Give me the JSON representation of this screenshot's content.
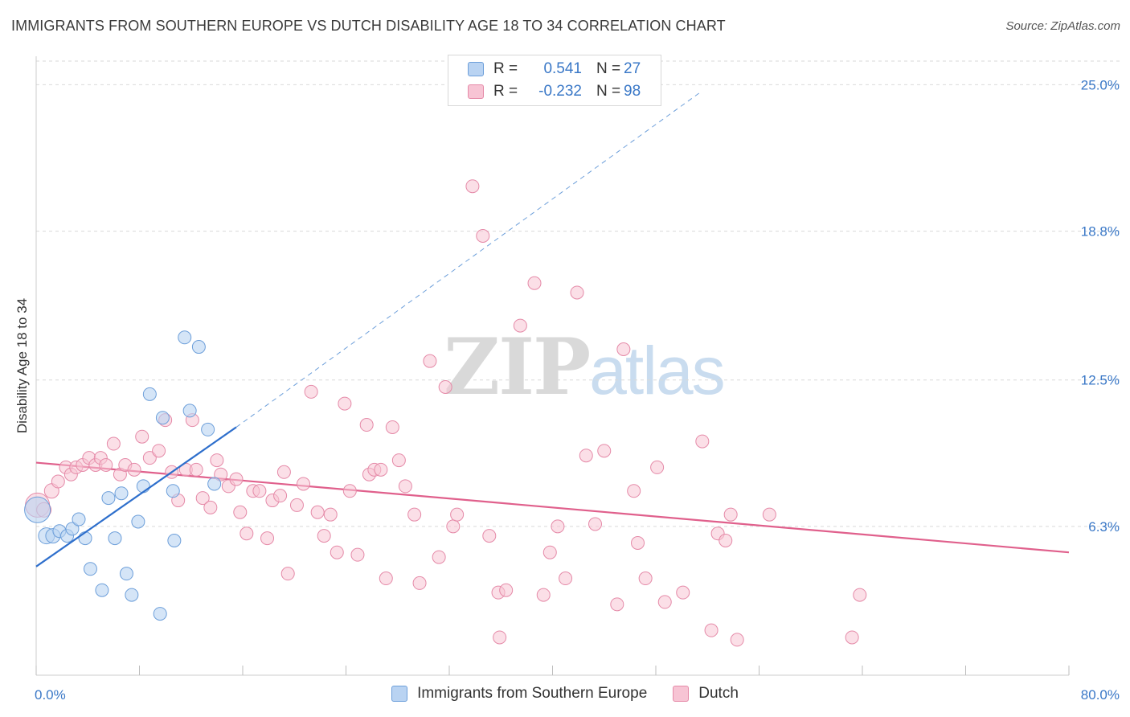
{
  "title": "IMMIGRANTS FROM SOUTHERN EUROPE VS DUTCH DISABILITY AGE 18 TO 34 CORRELATION CHART",
  "source": "Source: ZipAtlas.com",
  "watermark": {
    "zip": "ZIP",
    "atlas": "atlas"
  },
  "legend": {
    "rows": [
      {
        "r_label": "R =",
        "r_value": "0.541",
        "n_label": "N =",
        "n_value": "27"
      },
      {
        "r_label": "R =",
        "r_value": "-0.232",
        "n_label": "N =",
        "n_value": "98"
      }
    ]
  },
  "bottom_legend": {
    "items": [
      {
        "label": "Immigrants from Southern Europe"
      },
      {
        "label": "Dutch"
      }
    ]
  },
  "colors": {
    "blue_fill": "#b9d3f2",
    "blue_stroke": "#6d9fda",
    "blue_line": "#2e6fcc",
    "pink_fill": "#f7c4d4",
    "pink_stroke": "#e58aa8",
    "pink_line": "#e0608c",
    "axis_text": "#3a78c7",
    "grid": "#d9d9d9"
  },
  "chart_data": {
    "type": "scatter",
    "title": "IMMIGRANTS FROM SOUTHERN EUROPE VS DUTCH DISABILITY AGE 18 TO 34 CORRELATION CHART",
    "xlabel": "",
    "ylabel": "Disability Age 18 to 34",
    "xlim": [
      0,
      80
    ],
    "ylim": [
      0,
      26
    ],
    "x_tick_labels": [
      "0.0%",
      "80.0%"
    ],
    "y_ticks": [
      6.3,
      12.5,
      18.8,
      25.0
    ],
    "y_tick_labels": [
      "6.3%",
      "12.5%",
      "18.8%",
      "25.0%"
    ],
    "series": [
      {
        "name": "Immigrants from Southern Europe",
        "R": 0.541,
        "N": 27,
        "trend": {
          "x": [
            0,
            15.5
          ],
          "y": [
            4.6,
            10.5
          ],
          "extend_dashed_to": [
            51.5,
            24.7
          ]
        },
        "points": [
          [
            0.1,
            7.0,
            16
          ],
          [
            0.8,
            5.9,
            10
          ],
          [
            1.3,
            5.9,
            9
          ],
          [
            1.8,
            6.1,
            8
          ],
          [
            2.4,
            5.9,
            8
          ],
          [
            2.8,
            6.2,
            8
          ],
          [
            3.3,
            6.6,
            8
          ],
          [
            3.8,
            5.8,
            8
          ],
          [
            4.2,
            4.5,
            8
          ],
          [
            5.1,
            3.6,
            8
          ],
          [
            5.6,
            7.5,
            8
          ],
          [
            6.1,
            5.8,
            8
          ],
          [
            6.6,
            7.7,
            8
          ],
          [
            7.0,
            4.3,
            8
          ],
          [
            7.4,
            3.4,
            8
          ],
          [
            7.9,
            6.5,
            8
          ],
          [
            8.3,
            8.0,
            8
          ],
          [
            8.8,
            11.9,
            8
          ],
          [
            9.6,
            2.6,
            8
          ],
          [
            9.8,
            10.9,
            8
          ],
          [
            10.6,
            7.8,
            8
          ],
          [
            10.7,
            5.7,
            8
          ],
          [
            11.5,
            14.3,
            8
          ],
          [
            11.9,
            11.2,
            8
          ],
          [
            12.6,
            13.9,
            8
          ],
          [
            13.3,
            10.4,
            8
          ],
          [
            13.8,
            8.1,
            8
          ]
        ]
      },
      {
        "name": "Dutch",
        "R": -0.232,
        "N": 98,
        "trend": {
          "x": [
            0,
            80
          ],
          "y": [
            9.0,
            5.2
          ]
        },
        "points": [
          [
            0.1,
            7.2,
            15
          ],
          [
            0.6,
            7.0,
            9
          ],
          [
            1.2,
            7.8,
            9
          ],
          [
            1.7,
            8.2,
            8
          ],
          [
            2.3,
            8.8,
            8
          ],
          [
            2.7,
            8.5,
            8
          ],
          [
            3.1,
            8.8,
            8
          ],
          [
            3.6,
            8.9,
            8
          ],
          [
            4.1,
            9.2,
            8
          ],
          [
            4.6,
            8.9,
            8
          ],
          [
            5.0,
            9.2,
            8
          ],
          [
            5.4,
            8.9,
            8
          ],
          [
            6.0,
            9.8,
            8
          ],
          [
            6.5,
            8.5,
            8
          ],
          [
            6.9,
            8.9,
            8
          ],
          [
            7.6,
            8.7,
            8
          ],
          [
            8.2,
            10.1,
            8
          ],
          [
            8.8,
            9.2,
            8
          ],
          [
            9.5,
            9.5,
            8
          ],
          [
            10.0,
            10.8,
            8
          ],
          [
            10.5,
            8.6,
            8
          ],
          [
            11.0,
            7.4,
            8
          ],
          [
            11.6,
            8.7,
            8
          ],
          [
            12.1,
            10.8,
            8
          ],
          [
            12.4,
            8.7,
            8
          ],
          [
            12.9,
            7.5,
            8
          ],
          [
            13.5,
            7.1,
            8
          ],
          [
            14.0,
            9.1,
            8
          ],
          [
            14.3,
            8.5,
            8
          ],
          [
            14.9,
            8.0,
            8
          ],
          [
            15.5,
            8.3,
            8
          ],
          [
            15.8,
            6.9,
            8
          ],
          [
            16.3,
            6.0,
            8
          ],
          [
            16.8,
            7.8,
            8
          ],
          [
            17.3,
            7.8,
            8
          ],
          [
            17.9,
            5.8,
            8
          ],
          [
            18.3,
            7.4,
            8
          ],
          [
            18.9,
            7.6,
            8
          ],
          [
            19.2,
            8.6,
            8
          ],
          [
            19.5,
            4.3,
            8
          ],
          [
            20.2,
            7.2,
            8
          ],
          [
            20.7,
            8.1,
            8
          ],
          [
            21.3,
            12.0,
            8
          ],
          [
            21.8,
            6.9,
            8
          ],
          [
            22.3,
            5.9,
            8
          ],
          [
            22.8,
            6.8,
            8
          ],
          [
            23.3,
            5.2,
            8
          ],
          [
            23.9,
            11.5,
            8
          ],
          [
            24.3,
            7.8,
            8
          ],
          [
            24.9,
            5.1,
            8
          ],
          [
            25.6,
            10.6,
            8
          ],
          [
            25.8,
            8.5,
            8
          ],
          [
            26.2,
            8.7,
            8
          ],
          [
            26.7,
            8.7,
            8
          ],
          [
            27.1,
            4.1,
            8
          ],
          [
            27.6,
            10.5,
            8
          ],
          [
            28.1,
            9.1,
            8
          ],
          [
            28.6,
            8.0,
            8
          ],
          [
            29.3,
            6.8,
            8
          ],
          [
            29.7,
            3.9,
            8
          ],
          [
            30.5,
            13.3,
            8
          ],
          [
            31.2,
            5.0,
            8
          ],
          [
            31.7,
            12.2,
            8
          ],
          [
            32.3,
            6.3,
            8
          ],
          [
            32.6,
            6.8,
            8
          ],
          [
            33.8,
            20.7,
            8
          ],
          [
            34.6,
            18.6,
            8
          ],
          [
            35.1,
            5.9,
            8
          ],
          [
            35.8,
            3.5,
            8
          ],
          [
            35.9,
            1.6,
            8
          ],
          [
            36.4,
            3.6,
            8
          ],
          [
            37.5,
            14.8,
            8
          ],
          [
            38.6,
            16.6,
            8
          ],
          [
            39.3,
            3.4,
            8
          ],
          [
            39.8,
            5.2,
            8
          ],
          [
            40.4,
            6.3,
            8
          ],
          [
            41.0,
            4.1,
            8
          ],
          [
            41.9,
            16.2,
            8
          ],
          [
            42.6,
            9.3,
            8
          ],
          [
            43.3,
            6.4,
            8
          ],
          [
            44.0,
            9.5,
            8
          ],
          [
            45.0,
            3.0,
            8
          ],
          [
            45.5,
            13.8,
            8
          ],
          [
            46.3,
            7.8,
            8
          ],
          [
            46.6,
            5.6,
            8
          ],
          [
            47.2,
            4.1,
            8
          ],
          [
            48.1,
            8.8,
            8
          ],
          [
            48.7,
            3.1,
            8
          ],
          [
            50.1,
            3.5,
            8
          ],
          [
            51.6,
            9.9,
            8
          ],
          [
            52.3,
            1.9,
            8
          ],
          [
            52.8,
            6.0,
            8
          ],
          [
            53.4,
            5.7,
            8
          ],
          [
            53.8,
            6.8,
            8
          ],
          [
            54.3,
            1.5,
            8
          ],
          [
            56.8,
            6.8,
            8
          ],
          [
            63.2,
            1.6,
            8
          ],
          [
            63.8,
            3.4,
            8
          ]
        ]
      }
    ]
  }
}
